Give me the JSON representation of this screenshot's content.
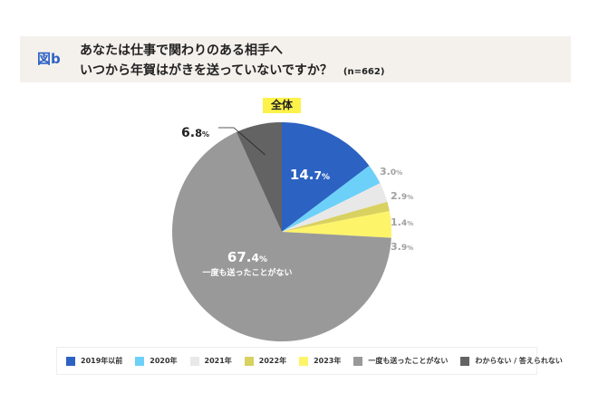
{
  "header": {
    "figure_label": "図b",
    "question_line1": "あなたは仕事で関わりのある相手へ",
    "question_line2": "いつから年賀はがきを送っていないですか？",
    "sample_size": "(n=662)"
  },
  "chart_data": {
    "type": "pie",
    "title": "全体",
    "start_angle": "12 o'clock",
    "direction": "clockwise",
    "unit": "%",
    "slices": [
      {
        "label": "2019年以前",
        "value": 14.7,
        "display": "14.7",
        "color": "#2c62c2",
        "label_color": "#ffffff",
        "label_position": "inside"
      },
      {
        "label": "2020年",
        "value": 3.0,
        "display": "3.0",
        "color": "#6dd0f8",
        "label_color": "#a0a0a0",
        "label_position": "outside"
      },
      {
        "label": "2021年",
        "value": 2.9,
        "display": "2.9",
        "color": "#e8e8e8",
        "label_color": "#a0a0a0",
        "label_position": "outside"
      },
      {
        "label": "2022年",
        "value": 1.4,
        "display": "1.4",
        "color": "#d9d160",
        "label_color": "#a0a0a0",
        "label_position": "outside"
      },
      {
        "label": "2023年",
        "value": 3.9,
        "display": "3.9",
        "color": "#fdf46a",
        "label_color": "#a0a0a0",
        "label_position": "outside"
      },
      {
        "label": "一度も送ったことがない",
        "value": 67.4,
        "display": "67.4",
        "color": "#999999",
        "label_color": "#ffffff",
        "label_position": "inside",
        "inner_caption": "一度も送ったことがない"
      },
      {
        "label": "わからない / 答えられない",
        "value": 6.8,
        "display": "6.8",
        "color": "#636363",
        "label_color": "#222222",
        "label_position": "leader"
      }
    ],
    "legend": [
      "2019年以前",
      "2020年",
      "2021年",
      "2022年",
      "2023年",
      "一度も送ったことがない",
      "わからない / 答えられない"
    ],
    "legend_placement": "bottom"
  }
}
